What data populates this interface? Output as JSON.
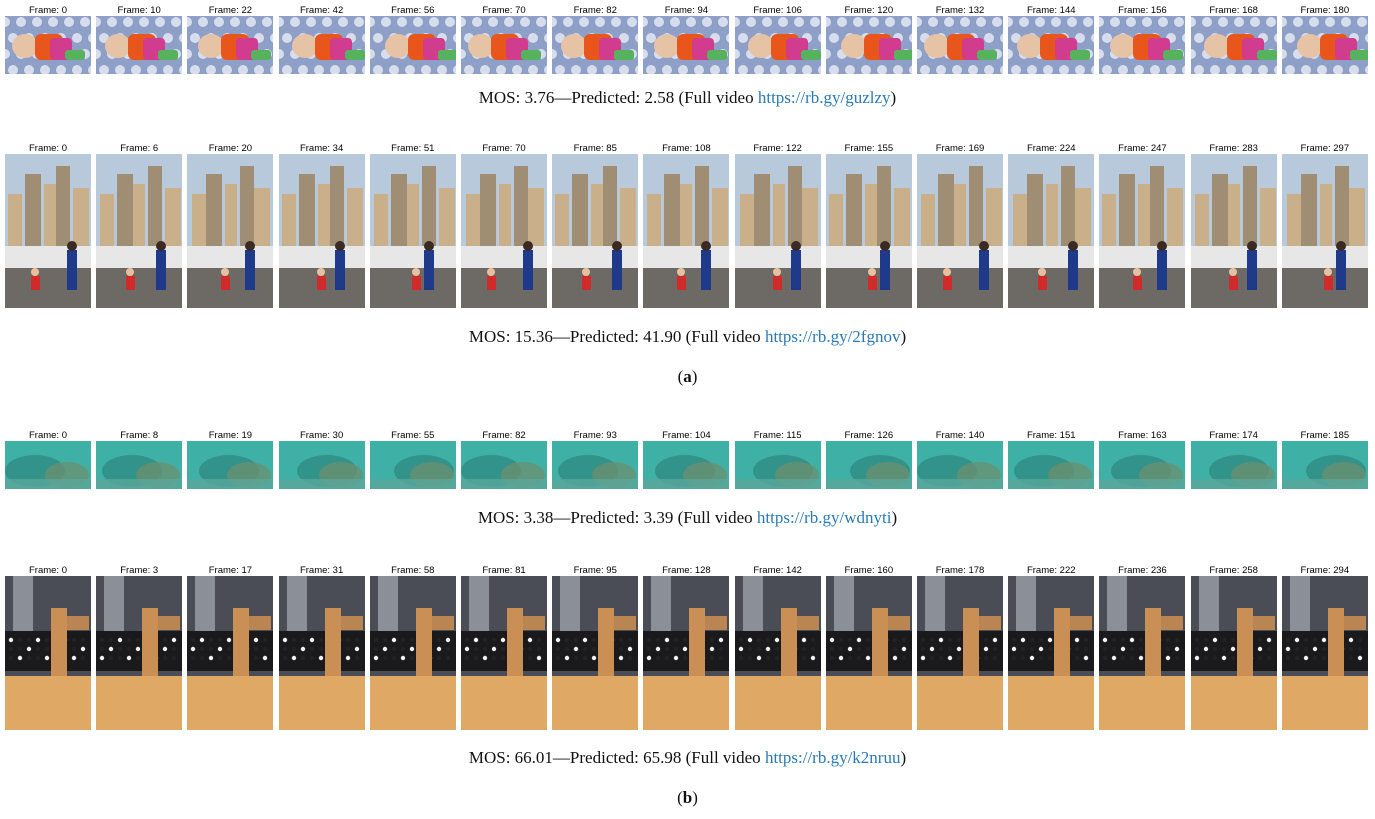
{
  "figure": {
    "panel_a_label": "a",
    "panel_b_label": "b",
    "rows": [
      {
        "id": "baby",
        "frames": [
          "Frame: 0",
          "Frame: 10",
          "Frame: 22",
          "Frame: 42",
          "Frame: 56",
          "Frame: 70",
          "Frame: 82",
          "Frame: 94",
          "Frame: 106",
          "Frame: 120",
          "Frame: 132",
          "Frame: 144",
          "Frame: 156",
          "Frame: 168",
          "Frame: 180"
        ],
        "caption_prefix": "MOS: 3.76—Predicted: 2.58 (Full video ",
        "caption_link": "https://rb.gy/guzlzy",
        "caption_suffix": ")",
        "scene": "baby-on-bed",
        "colors": {
          "sky": "#c9cfe6",
          "main": "#e8561c",
          "accent": "#d23c8e",
          "ground": "#8fa0c8"
        }
      },
      {
        "id": "bubbles",
        "frames": [
          "Frame: 0",
          "Frame: 6",
          "Frame: 20",
          "Frame: 34",
          "Frame: 51",
          "Frame: 70",
          "Frame: 85",
          "Frame: 108",
          "Frame: 122",
          "Frame: 155",
          "Frame: 169",
          "Frame: 224",
          "Frame: 247",
          "Frame: 283",
          "Frame: 297"
        ],
        "caption_prefix": "MOS: 15.36—Predicted: 41.90 (Full video ",
        "caption_link": "https://rb.gy/2fgnov",
        "caption_suffix": ")",
        "scene": "city-waterfront",
        "colors": {
          "sky": "#b9c9dc",
          "main": "#c9b08a",
          "accent": "#d02a2a",
          "ground": "#6d6a66"
        }
      },
      {
        "id": "underwater",
        "frames": [
          "Frame: 0",
          "Frame: 8",
          "Frame: 19",
          "Frame: 30",
          "Frame: 55",
          "Frame: 82",
          "Frame: 93",
          "Frame: 104",
          "Frame: 115",
          "Frame: 126",
          "Frame: 140",
          "Frame: 151",
          "Frame: 163",
          "Frame: 174",
          "Frame: 185"
        ],
        "caption_prefix": "MOS: 3.38—Predicted: 3.39 (Full video ",
        "caption_link": "https://rb.gy/wdnyti",
        "caption_suffix": ")",
        "scene": "underwater-reef",
        "colors": {
          "sky": "#3fb0a6",
          "main": "#2f8c84",
          "accent": "#6f8f6c",
          "ground": "#5ba69a"
        }
      },
      {
        "id": "machine",
        "frames": [
          "Frame: 0",
          "Frame: 3",
          "Frame: 17",
          "Frame: 31",
          "Frame: 58",
          "Frame: 81",
          "Frame: 95",
          "Frame: 128",
          "Frame: 142",
          "Frame: 160",
          "Frame: 178",
          "Frame: 222",
          "Frame: 236",
          "Frame: 258",
          "Frame: 294"
        ],
        "caption_prefix": "MOS: 66.01—Predicted: 65.98 (Full video ",
        "caption_link": "https://rb.gy/k2nruu",
        "caption_suffix": ")",
        "scene": "wooden-machine",
        "colors": {
          "sky": "#4a4d55",
          "main": "#c98f55",
          "accent": "#1a1a1c",
          "ground": "#e0a865"
        }
      }
    ]
  }
}
